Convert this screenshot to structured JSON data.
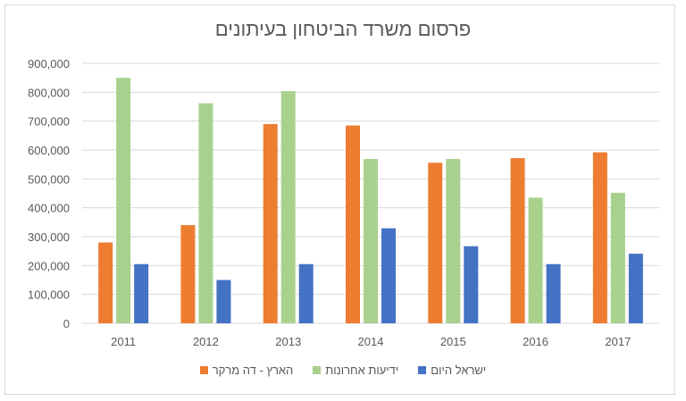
{
  "chart_data": {
    "type": "bar",
    "title": "פרסום משרד הביטחון בעיתונים",
    "xlabel": "",
    "ylabel": "",
    "categories": [
      "2011",
      "2012",
      "2013",
      "2014",
      "2015",
      "2016",
      "2017"
    ],
    "ylim": [
      0,
      900000
    ],
    "yticks": [
      0,
      100000,
      200000,
      300000,
      400000,
      500000,
      600000,
      700000,
      800000,
      900000
    ],
    "ytick_labels": [
      "0",
      "100,000",
      "200,000",
      "300,000",
      "400,000",
      "500,000",
      "600,000",
      "700,000",
      "800,000",
      "900,000"
    ],
    "grid": true,
    "legend_position": "bottom",
    "series": [
      {
        "name": "הארץ - דה מרקר",
        "color": "#ed7d31",
        "values": [
          280000,
          340000,
          690000,
          685000,
          556000,
          572000,
          592000
        ]
      },
      {
        "name": "ידיעות אחרונות",
        "color": "#a9d18e",
        "values": [
          850000,
          762000,
          804000,
          569000,
          569000,
          435000,
          452000
        ]
      },
      {
        "name": "ישראל היום",
        "color": "#4472c4",
        "values": [
          205000,
          150000,
          205000,
          329000,
          267000,
          205000,
          241000
        ]
      }
    ]
  }
}
